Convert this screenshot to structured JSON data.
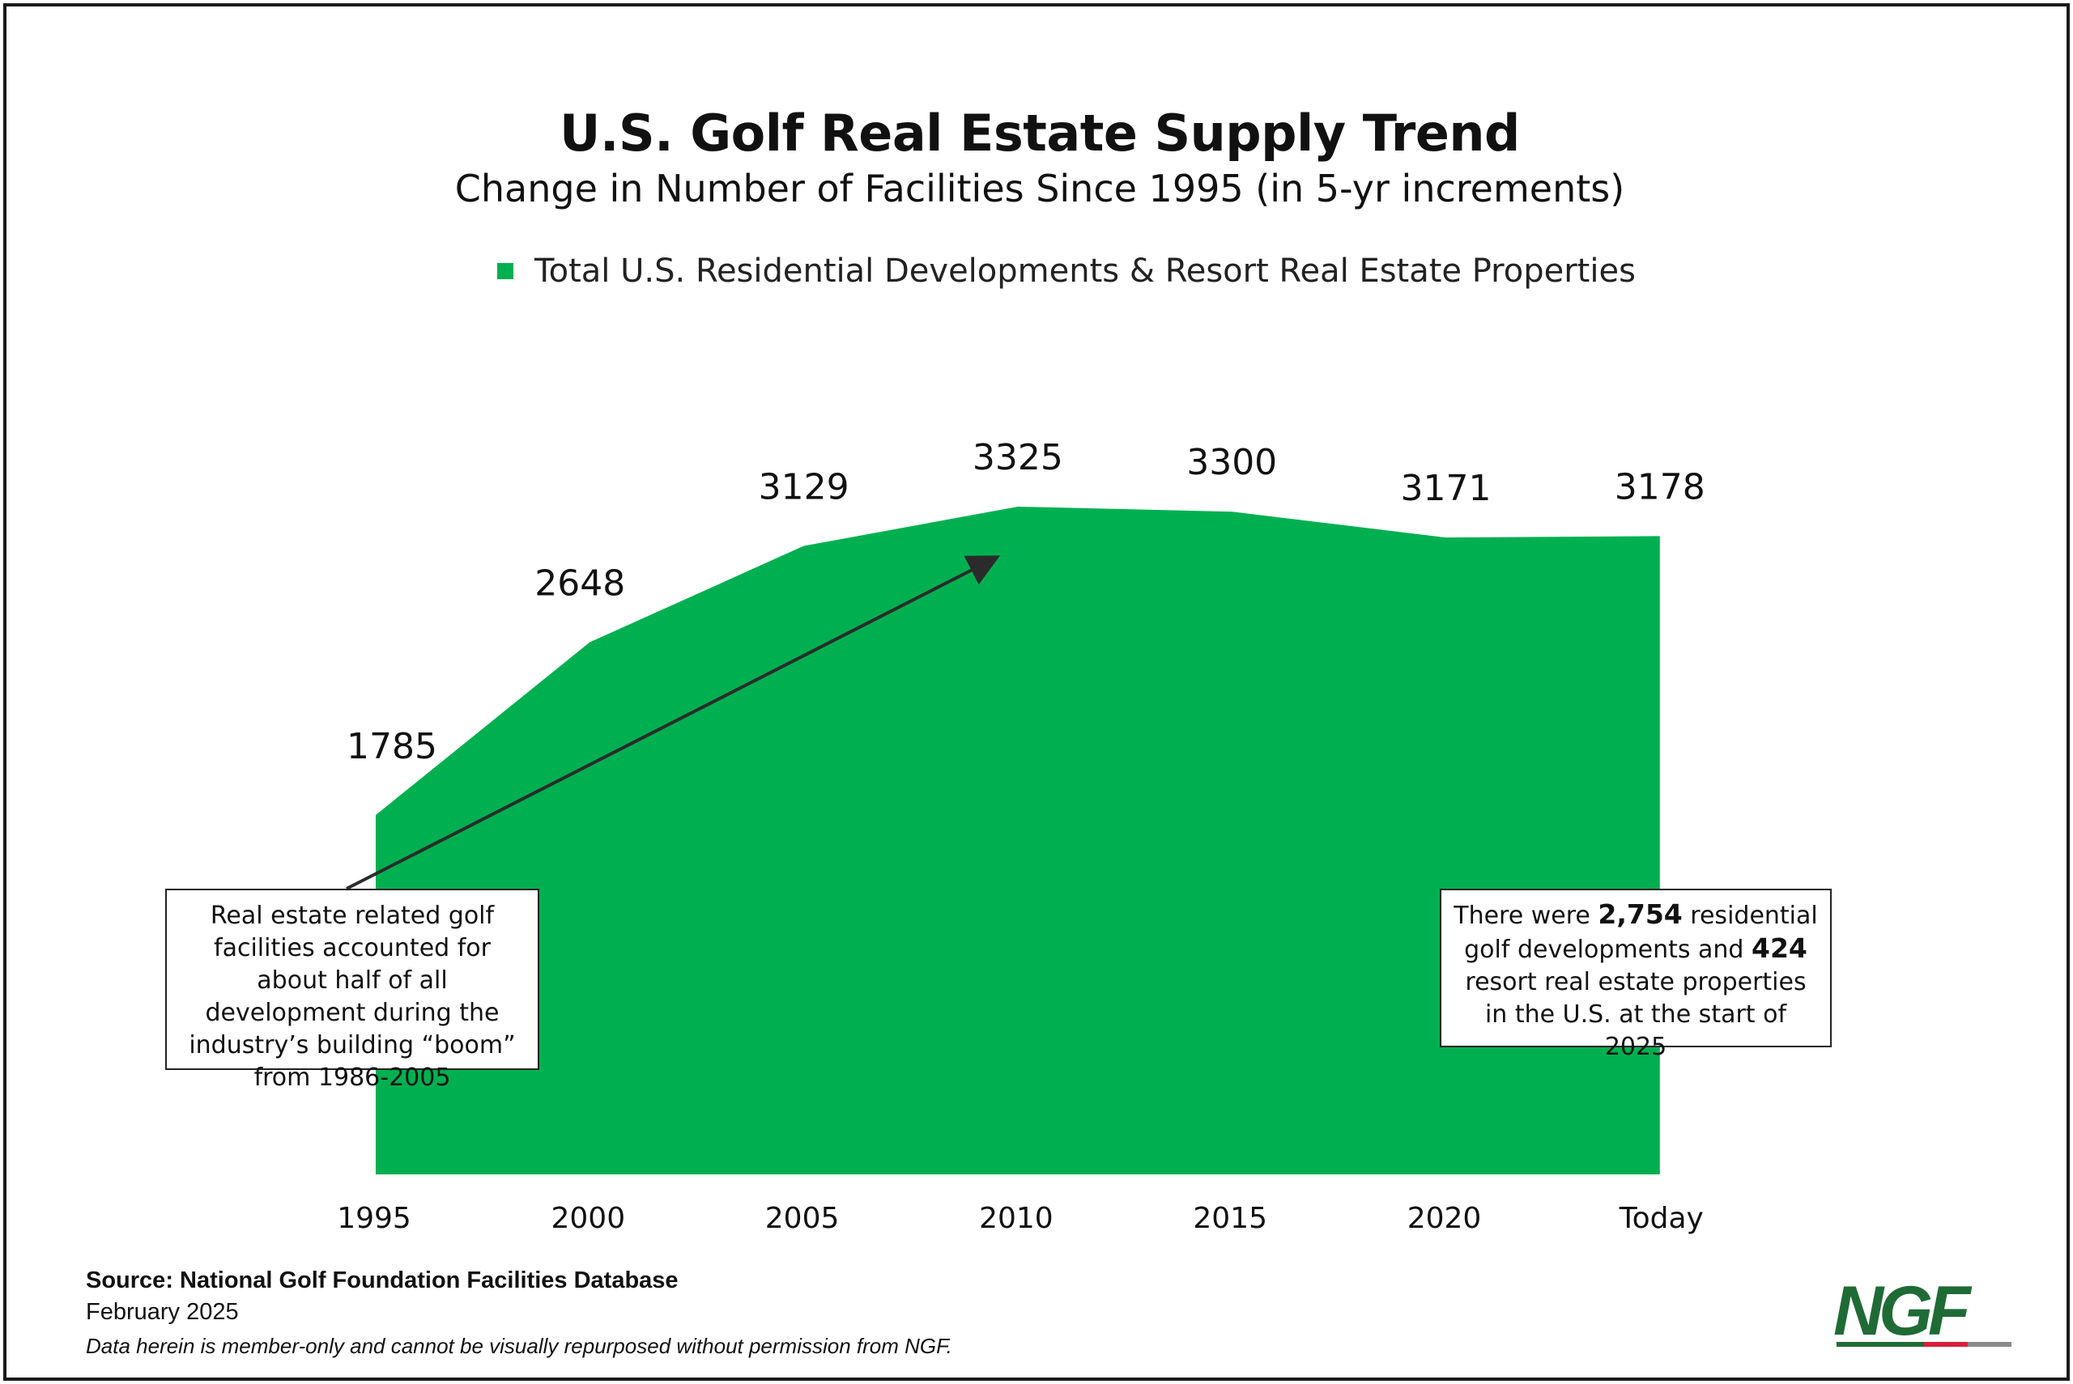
{
  "colors": {
    "area": "#00b050",
    "arrow": "#2b2b2b",
    "logo": "#1f6b35",
    "logo_bar": [
      "#1f6b35",
      "#1f6b35",
      "#d8203a",
      "#8a8a8a"
    ]
  },
  "chart_data": {
    "type": "area",
    "title": "U.S. Golf Real Estate Supply Trend",
    "subtitle": "Change in Number of Facilities Since 1995 (in 5-yr increments)",
    "categories": [
      "1995",
      "2000",
      "2005",
      "2010",
      "2015",
      "2020",
      "Today"
    ],
    "series": [
      {
        "name": "Total U.S. Residential Developments & Resort Real Estate Properties",
        "values": [
          1785,
          2648,
          3129,
          3325,
          3300,
          3171,
          3178
        ]
      }
    ],
    "data_labels": [
      "1785",
      "2648",
      "3129",
      "3325",
      "3300",
      "3171",
      "3178"
    ],
    "ylim": [
      0,
      3325
    ],
    "xlabel": "",
    "ylabel": "",
    "grid": false,
    "legend_position": "top"
  },
  "annotations": {
    "left": {
      "text": "Real estate related golf facilities accounted for about half of all development during the industry’s building “boom” from 1986-2005"
    },
    "right": {
      "prefix": "There were ",
      "number1": "2,754",
      "middle": " residential golf developments and ",
      "number2": "424",
      "suffix": " resort real estate properties in the U.S. at the start of 2025"
    }
  },
  "footer": {
    "source": "Source: National Golf Foundation Facilities Database",
    "date": "February 2025",
    "disclaimer": "Data herein is member-only and cannot be visually repurposed without permission from NGF."
  },
  "logo": {
    "text": "NGF"
  }
}
